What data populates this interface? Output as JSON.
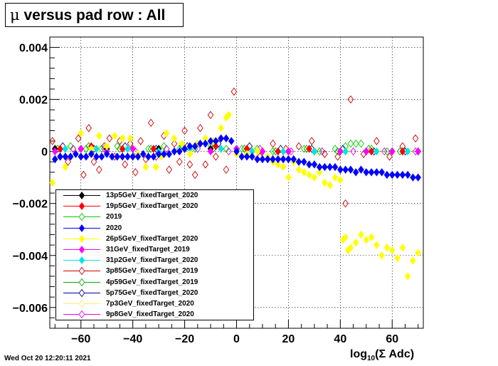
{
  "title": {
    "symbol": "μ",
    "text": "versus pad row : All"
  },
  "timestamp": "Wed Oct 20 12:20:11 2021",
  "chart_data": {
    "type": "scatter",
    "xlabel": {
      "base": "log",
      "sub": "10",
      "rest": "(Σ Adc)"
    },
    "ylabel": "",
    "xlim": [
      -72,
      72
    ],
    "ylim": [
      -0.0068,
      0.0044
    ],
    "grid": true,
    "legend_position": "bottom-left",
    "x_ticks": [
      -60,
      -40,
      -20,
      0,
      20,
      40,
      60
    ],
    "x_tick_labels": [
      "−60",
      "−40",
      "−20",
      "0",
      "20",
      "40",
      "60"
    ],
    "y_ticks": [
      0.004,
      0.002,
      0,
      -0.002,
      -0.004,
      -0.006
    ],
    "y_tick_labels": [
      "0.004",
      "0.002",
      "0",
      "−0.002",
      "−0.004",
      "−0.006"
    ],
    "series": [
      {
        "name": "13p5GeV_fixedTarget_2020",
        "color": "#000000",
        "marker": "diamond-filled",
        "x": [
          -70,
          -60,
          -50,
          -40,
          -30,
          -20,
          -10,
          0,
          10,
          20,
          30,
          40,
          50,
          60,
          70
        ],
        "y": [
          0.0001,
          0.0001,
          0.0001,
          0.0001,
          0.0001,
          0.0001,
          0.0001,
          0.0001,
          0.0,
          0.0,
          0.0,
          0.0,
          0.0,
          0.0,
          0.0
        ]
      },
      {
        "name": "19p5GeV_fixedTarget_2020",
        "color": "#ff0000",
        "marker": "diamond-filled",
        "x": [
          -68,
          -56,
          -44,
          -32,
          -20,
          -8,
          4,
          16,
          28,
          40,
          52,
          64
        ],
        "y": [
          0.0001,
          0.0002,
          0.0001,
          0.0001,
          0.0001,
          0.0002,
          0.0001,
          0.0,
          0.0001,
          0.0,
          0.0,
          0.0
        ]
      },
      {
        "name": "2019",
        "color": "#00cc00",
        "marker": "diamond-open",
        "x": [
          -70,
          -64,
          -58,
          -52,
          -46,
          -40,
          -34,
          -28,
          -22,
          -16,
          -10,
          -4,
          2,
          8,
          14,
          20,
          26,
          32,
          38,
          42,
          44,
          46,
          48,
          52,
          58,
          64,
          70
        ],
        "y": [
          0.0001,
          0.0002,
          0.0001,
          0.0001,
          0.0002,
          0.0001,
          0.0001,
          0.0002,
          0.0001,
          0.0001,
          0.0002,
          0.0001,
          0.0001,
          0.0001,
          0.0,
          0.0,
          0.0001,
          0.0,
          0.0001,
          0.0002,
          0.0003,
          0.0003,
          0.0003,
          0.0001,
          0.0,
          0.0,
          0.0
        ]
      },
      {
        "name": "2020",
        "color": "#0000ff",
        "marker": "diamond-filled",
        "x": [
          -70,
          -68,
          -66,
          -64,
          -62,
          -60,
          -58,
          -56,
          -54,
          -52,
          -50,
          -48,
          -46,
          -44,
          -42,
          -40,
          -38,
          -36,
          -34,
          -32,
          -30,
          -28,
          -26,
          -24,
          -22,
          -20,
          -18,
          -16,
          -14,
          -12,
          -10,
          -8,
          -6,
          -4,
          -2,
          0,
          2,
          4,
          6,
          8,
          10,
          12,
          14,
          16,
          18,
          20,
          22,
          24,
          26,
          28,
          30,
          32,
          34,
          36,
          38,
          40,
          42,
          44,
          46,
          48,
          50,
          52,
          54,
          56,
          58,
          60,
          62,
          64,
          66,
          68,
          70
        ],
        "y": [
          -0.0003,
          -0.0002,
          -0.0002,
          -0.0002,
          -0.0001,
          -0.0002,
          -0.0002,
          -0.0001,
          -0.0002,
          -0.0002,
          -0.0001,
          -0.0002,
          -0.0002,
          -0.0002,
          -0.0002,
          -0.0002,
          -0.0002,
          -0.0001,
          -0.0002,
          -0.0002,
          -0.0001,
          -0.0001,
          -0.0001,
          0.0,
          0.0,
          0.0001,
          0.0002,
          0.0002,
          0.0003,
          0.0003,
          0.0004,
          0.0004,
          0.0005,
          0.0005,
          0.0004,
          0.0,
          -0.0002,
          -0.0002,
          -0.0002,
          -0.0003,
          -0.0003,
          -0.0003,
          -0.0003,
          -0.0003,
          -0.0003,
          -0.0003,
          -0.0003,
          -0.0004,
          -0.0004,
          -0.0005,
          -0.0005,
          -0.0006,
          -0.0006,
          -0.0006,
          -0.0006,
          -0.0007,
          -0.0007,
          -0.0007,
          -0.0008,
          -0.0007,
          -0.0008,
          -0.0008,
          -0.0008,
          -0.0008,
          -0.0009,
          -0.0009,
          -0.0009,
          -0.0009,
          -0.0009,
          -0.001,
          -0.001
        ]
      },
      {
        "name": "26p5GeV_fixedTarget_2020",
        "color": "#ffff00",
        "marker": "diamond-filled",
        "x": [
          -71,
          -66,
          -60,
          -56,
          -53,
          -50,
          -47,
          -44,
          -41,
          -38,
          -35,
          -31,
          -29,
          -27,
          -24,
          -21,
          -18,
          -15,
          -12,
          -9,
          -6,
          -4,
          -3,
          0,
          4,
          8,
          12,
          14,
          16,
          18,
          20,
          22,
          24,
          26,
          28,
          30,
          32,
          34,
          36,
          38,
          40,
          41,
          42,
          43,
          44,
          46,
          48,
          50,
          52,
          54,
          56,
          58,
          60,
          62,
          64,
          66,
          68,
          70
        ],
        "y": [
          -0.0012,
          -0.0006,
          0.0007,
          0.0001,
          0.0006,
          0.0002,
          0.0006,
          0.0005,
          0.0005,
          -0.0001,
          -0.0006,
          -0.0006,
          -0.0002,
          0.0007,
          0.0005,
          0.0003,
          -0.0001,
          0.0003,
          0.0005,
          0.0004,
          0.0009,
          0.0013,
          0.0014,
          -0.0001,
          -0.0001,
          0.0,
          -0.0002,
          -0.0004,
          -0.0005,
          -0.0006,
          -0.001,
          -0.0004,
          -0.0007,
          -0.0008,
          -0.0009,
          -0.001,
          -0.0008,
          -0.0012,
          -0.0013,
          -0.001,
          -0.0011,
          -0.0034,
          -0.0033,
          -0.0038,
          -0.0037,
          -0.0035,
          -0.0032,
          -0.0034,
          -0.0033,
          -0.0036,
          -0.004,
          -0.0037,
          -0.0038,
          -0.0041,
          -0.0037,
          -0.0048,
          -0.0042,
          -0.0039
        ]
      },
      {
        "name": "31GeV_fixedTarget_2019",
        "color": "#ff00ff",
        "marker": "diamond-filled",
        "x": [
          -70,
          -60,
          -50,
          -40,
          -30,
          -20,
          -10,
          0,
          10,
          20,
          30,
          40,
          50,
          60,
          70
        ],
        "y": [
          0.0,
          0.0001,
          0.0,
          0.0001,
          0.0,
          0.0001,
          0.0,
          0.0001,
          0.0,
          0.0,
          0.0,
          0.0,
          0.0,
          0.0,
          0.0
        ]
      },
      {
        "name": "31p2GeV_fixedTarget_2020",
        "color": "#00e5e5",
        "marker": "diamond-filled",
        "x": [
          -66,
          -54,
          -42,
          -30,
          -18,
          -6,
          6,
          18,
          30,
          42,
          54,
          66
        ],
        "y": [
          0.0001,
          0.0001,
          0.0001,
          0.0,
          0.0001,
          0.0001,
          0.0,
          0.0,
          0.0,
          0.0,
          0.0,
          0.0
        ]
      },
      {
        "name": "3p85GeV_fixedTarget_2019",
        "color": "#cc0000",
        "marker": "diamond-open",
        "x": [
          -71,
          -68,
          -65,
          -63,
          -61,
          -59,
          -57,
          -55,
          -53,
          -51,
          -49,
          -47,
          -45,
          -43,
          -41,
          -39,
          -37,
          -35,
          -33,
          -31,
          -28,
          -26,
          -24,
          -22,
          -20,
          -18,
          -16,
          -14,
          -12,
          -10,
          -8,
          -6,
          -4,
          -1,
          4,
          9,
          14,
          19,
          24,
          29,
          34,
          39,
          42,
          44,
          49,
          54,
          59,
          64,
          69
        ],
        "y": [
          0.0004,
          -0.0002,
          -0.0004,
          0.0001,
          0.0005,
          -0.0009,
          0.0009,
          -0.0004,
          -0.0007,
          0.0002,
          0.0005,
          -0.0002,
          0.0004,
          -0.0005,
          0.0003,
          -0.0008,
          0.0004,
          -0.0003,
          0.0011,
          -0.0002,
          0.0006,
          -0.0007,
          0.0003,
          -0.0004,
          0.0008,
          -0.0005,
          -0.0009,
          0.0009,
          -0.0005,
          0.0014,
          -0.0002,
          0.0005,
          -0.0007,
          0.0023,
          0.0001,
          -0.0002,
          0.0003,
          0.0001,
          0.0002,
          0.0004,
          -0.0001,
          -0.0002,
          -0.002,
          0.002,
          -0.0001,
          0.0004,
          -0.0002,
          0.0002,
          0.0005
        ]
      },
      {
        "name": "4p59GeV_fixedTarget_2019",
        "color": "#00aa00",
        "marker": "diamond-open",
        "x": [
          -69,
          -57,
          -45,
          -33,
          -21,
          -9,
          3,
          15,
          27,
          39,
          51,
          63
        ],
        "y": [
          0.0001,
          0.0002,
          0.0001,
          0.0001,
          0.0002,
          0.0001,
          0.0001,
          0.0,
          0.0001,
          0.0,
          0.0001,
          0.0
        ]
      },
      {
        "name": "5p75GeV_fixedTarget_2020",
        "color": "#000099",
        "marker": "diamond-open",
        "x": [
          -67,
          -55,
          -43,
          -31,
          -19,
          -7,
          5,
          17,
          29,
          41,
          53,
          65
        ],
        "y": [
          0.0002,
          0.0001,
          0.0002,
          0.0001,
          0.0002,
          0.0003,
          0.0002,
          0.0001,
          0.0001,
          0.0001,
          0.0,
          0.0
        ]
      },
      {
        "name": "7p3GeV_fixedTarget_2020",
        "color": "#ffee66",
        "marker": "diamond-open",
        "x": [
          -65,
          -53,
          -41,
          -29,
          -17,
          -5,
          7,
          19,
          31,
          43,
          55,
          67
        ],
        "y": [
          0.0001,
          0.0001,
          0.0001,
          0.0001,
          0.0001,
          0.0,
          0.0001,
          0.0,
          0.0,
          0.0,
          0.0,
          0.0
        ]
      },
      {
        "name": "9p8GeV_fixedTarget_2020",
        "color": "#ee00ee",
        "marker": "diamond-open",
        "x": [
          -63,
          -51,
          -39,
          -27,
          -15,
          -3,
          9,
          21,
          33,
          45,
          57,
          69
        ],
        "y": [
          0.0001,
          0.0001,
          0.0,
          0.0001,
          0.0001,
          0.0,
          0.0001,
          0.0,
          0.0,
          0.0,
          0.0,
          0.0
        ]
      }
    ]
  }
}
